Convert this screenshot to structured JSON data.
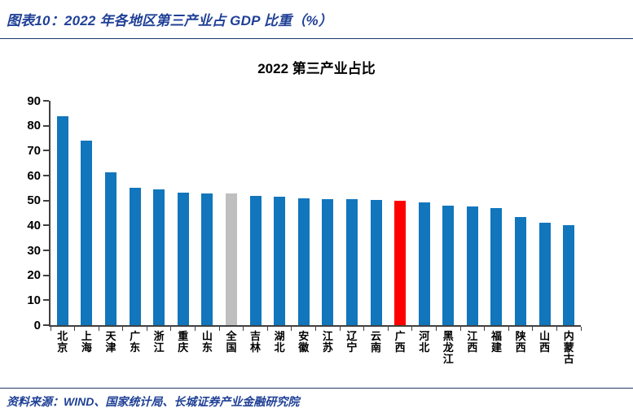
{
  "figure": {
    "caption": "图表10：2022 年各地区第三产业占 GDP 比重（%）",
    "source": "资料来源：WIND、国家统计局、长城证券产业金融研究院"
  },
  "colors": {
    "bar_default": "#1176BC",
    "bar_national": "#BFBFBF",
    "bar_highlight": "#FF0000",
    "caption_text": "#1F4096",
    "rule": "#1F3864",
    "axis": "#404040"
  },
  "chart_data": {
    "type": "bar",
    "title": "2022 第三产业占比",
    "categories": [
      "北京",
      "上海",
      "天津",
      "广东",
      "浙江",
      "重庆",
      "山东",
      "全国",
      "吉林",
      "湖北",
      "安徽",
      "江苏",
      "辽宁",
      "云南",
      "广西",
      "河北",
      "黑龙江",
      "江西",
      "福建",
      "陕西",
      "山西",
      "内蒙古"
    ],
    "values": [
      83.9,
      74.1,
      61.3,
      55.1,
      54.4,
      53.2,
      53.0,
      52.9,
      52.0,
      51.4,
      50.9,
      50.7,
      50.5,
      50.2,
      50.0,
      49.3,
      48.0,
      47.5,
      46.9,
      43.4,
      41.0,
      40.2
    ],
    "highlights": {
      "全国": "#BFBFBF",
      "广西": "#FF0000"
    },
    "xlabel": "",
    "ylabel": "",
    "ylim": [
      0,
      90
    ],
    "yticks": [
      0,
      10,
      20,
      30,
      40,
      50,
      60,
      70,
      80,
      90
    ],
    "grid": false,
    "legend": null
  }
}
